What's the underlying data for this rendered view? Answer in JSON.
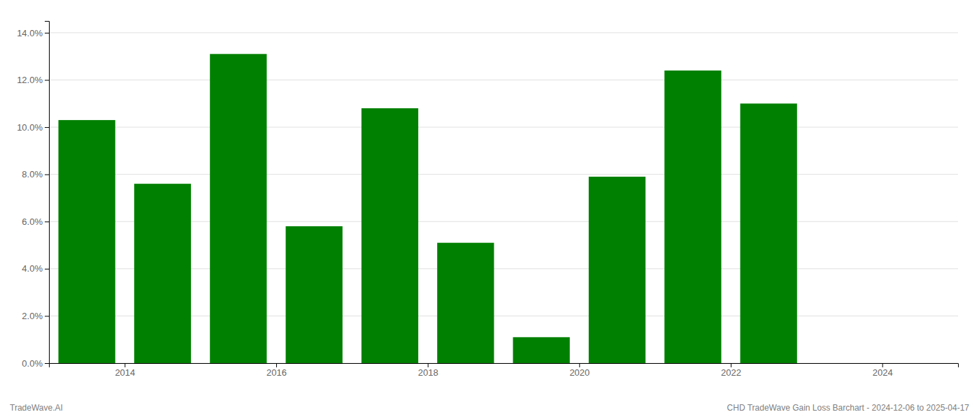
{
  "chart_data": {
    "type": "bar",
    "x": [
      2013,
      2014,
      2015,
      2016,
      2017,
      2018,
      2019,
      2020,
      2021,
      2022
    ],
    "values": [
      0.103,
      0.076,
      0.131,
      0.058,
      0.108,
      0.051,
      0.011,
      0.079,
      0.124,
      0.11
    ],
    "color": "#008000",
    "xlim": [
      2012.5,
      2024.5
    ],
    "xticks": [
      {
        "value": 2013.5,
        "label": "2014"
      },
      {
        "value": 2015.5,
        "label": "2016"
      },
      {
        "value": 2017.5,
        "label": "2018"
      },
      {
        "value": 2019.5,
        "label": "2020"
      },
      {
        "value": 2021.5,
        "label": "2022"
      },
      {
        "value": 2023.5,
        "label": "2024"
      }
    ],
    "ylim": [
      0,
      0.145
    ],
    "yticks": [
      {
        "value": 0.0,
        "label": "0.0%"
      },
      {
        "value": 0.02,
        "label": "2.0%"
      },
      {
        "value": 0.04,
        "label": "4.0%"
      },
      {
        "value": 0.06,
        "label": "6.0%"
      },
      {
        "value": 0.08,
        "label": "8.0%"
      },
      {
        "value": 0.1,
        "label": "10.0%"
      },
      {
        "value": 0.12,
        "label": "12.0%"
      },
      {
        "value": 0.14,
        "label": "14.0%"
      }
    ],
    "grid": true,
    "annotations": [
      "TradeWave.AI",
      "CHD TradeWave Gain Loss Barchart - 2024-12-06 to 2025-04-17"
    ]
  }
}
